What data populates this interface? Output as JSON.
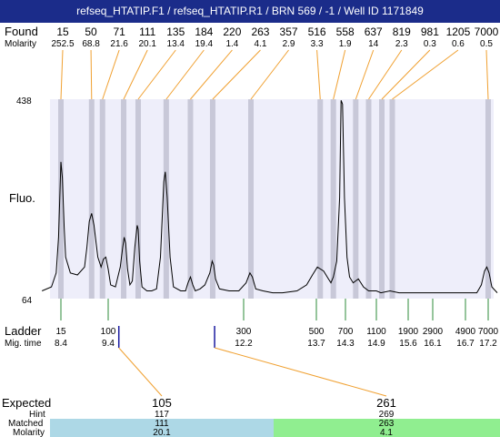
{
  "title": "refseq_HTATIP.F1 / refseq_HTATIP.R1 / BRN 569 / -1 / Well ID 1171849",
  "labels": {
    "found": "Found",
    "molarity": "Molarity",
    "fluo": "Fluo.",
    "ladder": "Ladder",
    "mig_time": "Mig. time",
    "expected": "Expected",
    "hint": "Hint",
    "matched": "Matched",
    "molarity_row": "Molarity"
  },
  "colors": {
    "title_bg": "#1b2c8a",
    "plot_bg": "#eeeefa",
    "band": "#c8c8d8",
    "found_line": "#f0a030",
    "ladder_tick": "#2e8b3a",
    "hint_line": "#1a1aa0",
    "matched_left": "#add8e6",
    "matched_right": "#90ee90"
  },
  "chart_data": {
    "type": "line",
    "ylim_labels": [
      "64",
      "438"
    ],
    "found_peaks": [
      {
        "size": "15",
        "molarity": "252.5",
        "time": 8.4
      },
      {
        "size": "50",
        "molarity": "68.8",
        "time": 9.05
      },
      {
        "size": "71",
        "molarity": "21.6",
        "time": 9.28
      },
      {
        "size": "111",
        "molarity": "20.1",
        "time": 9.72
      },
      {
        "size": "135",
        "molarity": "13.4",
        "time": 10.02
      },
      {
        "size": "184",
        "molarity": "19.4",
        "time": 10.6
      },
      {
        "size": "220",
        "molarity": "1.4",
        "time": 11.1
      },
      {
        "size": "263",
        "molarity": "4.1",
        "time": 11.56
      },
      {
        "size": "357",
        "molarity": "2.9",
        "time": 12.35
      },
      {
        "size": "516",
        "molarity": "3.3",
        "time": 13.78
      },
      {
        "size": "558",
        "molarity": "1.9",
        "time": 14.05
      },
      {
        "size": "637",
        "molarity": "14",
        "time": 14.5
      },
      {
        "size": "819",
        "molarity": "2.3",
        "time": 14.75
      },
      {
        "size": "981",
        "molarity": "0.3",
        "time": 15.02
      },
      {
        "size": "1205",
        "molarity": "0.6",
        "time": 15.25
      },
      {
        "size": "7000",
        "molarity": "0.5",
        "time": 17.2
      }
    ],
    "ladder": [
      {
        "size": "15",
        "time": "8.4"
      },
      {
        "size": "100",
        "time": "9.4"
      },
      {
        "size": "300",
        "time": "12.2"
      },
      {
        "size": "500",
        "time": "13.7"
      },
      {
        "size": "700",
        "time": "14.3"
      },
      {
        "size": "1100",
        "time": "14.9"
      },
      {
        "size": "1900",
        "time": "15.6"
      },
      {
        "size": "2900",
        "time": "16.1"
      },
      {
        "size": "4900",
        "time": "16.7"
      },
      {
        "size": "7000",
        "time": "17.2"
      }
    ],
    "trace": [
      [
        8.0,
        0.03
      ],
      [
        8.2,
        0.05
      ],
      [
        8.3,
        0.12
      ],
      [
        8.35,
        0.3
      ],
      [
        8.4,
        0.68
      ],
      [
        8.43,
        0.6
      ],
      [
        8.47,
        0.35
      ],
      [
        8.5,
        0.2
      ],
      [
        8.6,
        0.12
      ],
      [
        8.75,
        0.11
      ],
      [
        8.9,
        0.15
      ],
      [
        8.95,
        0.25
      ],
      [
        9.0,
        0.38
      ],
      [
        9.05,
        0.42
      ],
      [
        9.1,
        0.36
      ],
      [
        9.18,
        0.2
      ],
      [
        9.25,
        0.15
      ],
      [
        9.3,
        0.19
      ],
      [
        9.35,
        0.2
      ],
      [
        9.4,
        0.14
      ],
      [
        9.45,
        0.06
      ],
      [
        9.55,
        0.05
      ],
      [
        9.65,
        0.15
      ],
      [
        9.7,
        0.25
      ],
      [
        9.73,
        0.3
      ],
      [
        9.76,
        0.27
      ],
      [
        9.8,
        0.14
      ],
      [
        9.85,
        0.06
      ],
      [
        9.9,
        0.08
      ],
      [
        9.95,
        0.25
      ],
      [
        10.0,
        0.36
      ],
      [
        10.02,
        0.34
      ],
      [
        10.05,
        0.18
      ],
      [
        10.1,
        0.05
      ],
      [
        10.2,
        0.03
      ],
      [
        10.3,
        0.03
      ],
      [
        10.4,
        0.04
      ],
      [
        10.48,
        0.2
      ],
      [
        10.55,
        0.58
      ],
      [
        10.58,
        0.63
      ],
      [
        10.62,
        0.5
      ],
      [
        10.68,
        0.2
      ],
      [
        10.75,
        0.05
      ],
      [
        10.9,
        0.03
      ],
      [
        11.0,
        0.03
      ],
      [
        11.05,
        0.07
      ],
      [
        11.1,
        0.1
      ],
      [
        11.15,
        0.06
      ],
      [
        11.2,
        0.03
      ],
      [
        11.3,
        0.04
      ],
      [
        11.4,
        0.06
      ],
      [
        11.5,
        0.12
      ],
      [
        11.55,
        0.18
      ],
      [
        11.58,
        0.16
      ],
      [
        11.62,
        0.09
      ],
      [
        11.7,
        0.04
      ],
      [
        11.9,
        0.03
      ],
      [
        12.1,
        0.03
      ],
      [
        12.25,
        0.07
      ],
      [
        12.33,
        0.12
      ],
      [
        12.38,
        0.1
      ],
      [
        12.45,
        0.04
      ],
      [
        12.6,
        0.03
      ],
      [
        12.8,
        0.02
      ],
      [
        13.0,
        0.02
      ],
      [
        13.3,
        0.03
      ],
      [
        13.5,
        0.06
      ],
      [
        13.62,
        0.11
      ],
      [
        13.72,
        0.15
      ],
      [
        13.85,
        0.13
      ],
      [
        13.95,
        0.09
      ],
      [
        14.0,
        0.07
      ],
      [
        14.05,
        0.1
      ],
      [
        14.12,
        0.18
      ],
      [
        14.18,
        0.5
      ],
      [
        14.21,
        0.99
      ],
      [
        14.24,
        0.97
      ],
      [
        14.28,
        0.5
      ],
      [
        14.33,
        0.2
      ],
      [
        14.38,
        0.1
      ],
      [
        14.45,
        0.07
      ],
      [
        14.55,
        0.09
      ],
      [
        14.65,
        0.05
      ],
      [
        14.75,
        0.03
      ],
      [
        14.9,
        0.03
      ],
      [
        15.0,
        0.02
      ],
      [
        15.2,
        0.03
      ],
      [
        15.4,
        0.02
      ],
      [
        15.6,
        0.02
      ],
      [
        15.8,
        0.02
      ],
      [
        16.0,
        0.02
      ],
      [
        16.2,
        0.02
      ],
      [
        16.4,
        0.02
      ],
      [
        16.6,
        0.02
      ],
      [
        16.8,
        0.02
      ],
      [
        16.95,
        0.02
      ],
      [
        17.05,
        0.06
      ],
      [
        17.12,
        0.13
      ],
      [
        17.17,
        0.15
      ],
      [
        17.22,
        0.12
      ],
      [
        17.28,
        0.05
      ],
      [
        17.4,
        0.02
      ]
    ]
  },
  "expected": [
    {
      "expected": "105",
      "hint": "117",
      "matched": "111",
      "molarity": "20.1",
      "hint_time": 9.62
    },
    {
      "expected": "261",
      "hint": "269",
      "matched": "263",
      "molarity": "4.1",
      "hint_time": 11.6
    }
  ]
}
